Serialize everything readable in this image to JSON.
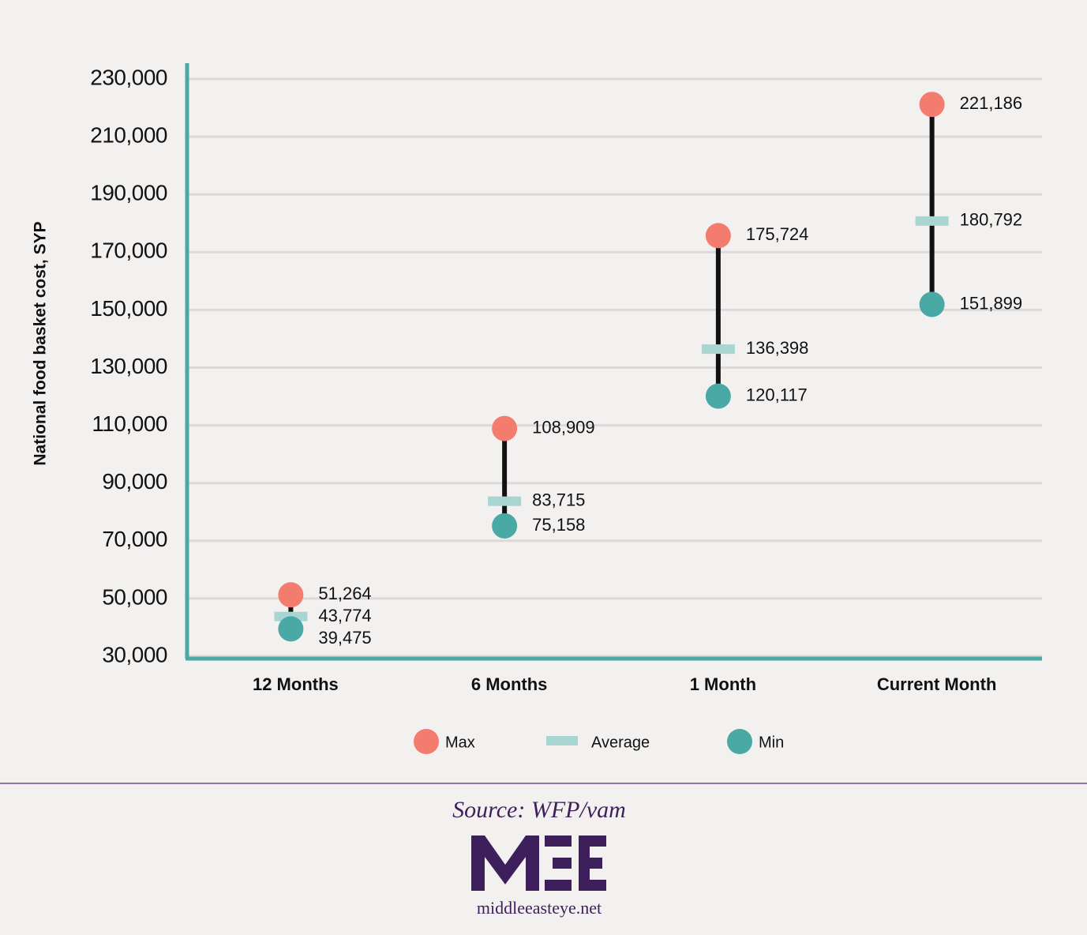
{
  "chart_data": {
    "type": "dumbbell",
    "y_label": "National food basket cost, SYP",
    "categories": [
      "12 Months",
      "6 Months",
      "1 Month",
      "Current Month"
    ],
    "series": [
      {
        "name": "Max",
        "color": "#f47c6e",
        "values": [
          51264,
          108909,
          175724,
          221186
        ],
        "value_labels": [
          "51,264",
          "108,909",
          "175,724",
          "221,186"
        ]
      },
      {
        "name": "Average",
        "color": "#a8d5d2",
        "values": [
          43774,
          83715,
          136398,
          180792
        ],
        "value_labels": [
          "43,774",
          "83,715",
          "136,398",
          "180,792"
        ]
      },
      {
        "name": "Min",
        "color": "#4aa8a5",
        "values": [
          39475,
          75158,
          120117,
          151899
        ],
        "value_labels": [
          "39,475",
          "75,158",
          "120,117",
          "151,899"
        ]
      }
    ],
    "ylim": [
      30000,
      230000
    ],
    "yticks": [
      {
        "value": 30000,
        "label": "30,000"
      },
      {
        "value": 50000,
        "label": "50,000"
      },
      {
        "value": 70000,
        "label": "70,000"
      },
      {
        "value": 90000,
        "label": "90,000"
      },
      {
        "value": 110000,
        "label": "110,000"
      },
      {
        "value": 130000,
        "label": "130,000"
      },
      {
        "value": 150000,
        "label": "150,000"
      },
      {
        "value": 170000,
        "label": "170,000"
      },
      {
        "value": 190000,
        "label": "190,000"
      },
      {
        "value": 210000,
        "label": "210,000"
      },
      {
        "value": 230000,
        "label": "230,000"
      }
    ],
    "grid": true,
    "axis_color": "#4aa8a5"
  },
  "footer": {
    "source": "Source: WFP/vam",
    "site": "middleeasteye.net"
  }
}
